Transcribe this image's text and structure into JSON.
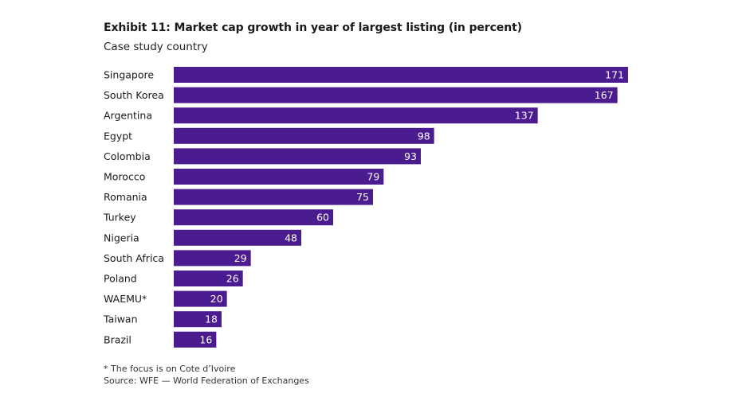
{
  "title": "Exhibit 11: Market cap growth in year of largest listing (in percent)",
  "subtitle": "Case study country",
  "footnote": "* The focus is on Cote d’Ivoire",
  "source": "Source: WFE — World Federation of Exchanges",
  "colors": {
    "bar": "#4b1c8f",
    "value_text": "#ffffff"
  },
  "chart_data": {
    "type": "bar",
    "orientation": "horizontal",
    "categories": [
      "Singapore",
      "South Korea",
      "Argentina",
      "Egypt",
      "Colombia",
      "Morocco",
      "Romania",
      "Turkey",
      "Nigeria",
      "South Africa",
      "Poland",
      "WAEMU*",
      "Taiwan",
      "Brazil"
    ],
    "values": [
      171,
      167,
      137,
      98,
      93,
      79,
      75,
      60,
      48,
      29,
      26,
      20,
      18,
      16
    ],
    "data_labels": [
      "171",
      "167",
      "137",
      "98",
      "93",
      "79",
      "75",
      "60",
      "48",
      "29",
      "26",
      "20",
      "18",
      "16"
    ],
    "title": "Exhibit 11: Market cap growth in year of largest listing (in percent)",
    "xlabel": "",
    "ylabel": "Case study country",
    "xlim": [
      0,
      171
    ],
    "grid": false,
    "legend": "none"
  }
}
